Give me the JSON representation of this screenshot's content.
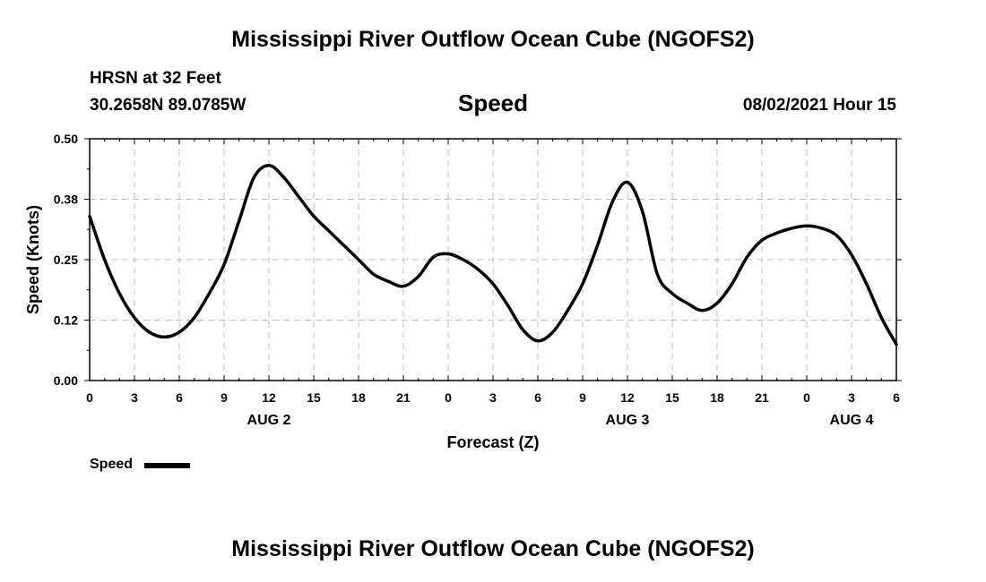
{
  "header": {
    "title": "Mississippi River Outflow Ocean Cube (NGOFS2)",
    "station": "HRSN at 32 Feet",
    "coords": "30.2658N  89.0785W",
    "timestamp": "08/02/2021 Hour 15"
  },
  "footer": {
    "title": "Mississippi River Outflow Ocean Cube (NGOFS2)"
  },
  "legend": {
    "label": "Speed",
    "color": "#000000"
  },
  "chart_data": {
    "type": "line",
    "title": "Speed",
    "xlabel": "Forecast (Z)",
    "ylabel": "Speed (Knots)",
    "xlim": [
      0,
      54
    ],
    "ylim": [
      0,
      0.5
    ],
    "x_ticks": [
      0,
      3,
      6,
      9,
      12,
      15,
      18,
      21,
      24,
      27,
      30,
      33,
      36,
      39,
      42,
      45,
      48,
      51,
      54
    ],
    "x_tick_labels": [
      "0",
      "3",
      "6",
      "9",
      "12",
      "15",
      "18",
      "21",
      "0",
      "3",
      "6",
      "9",
      "12",
      "15",
      "18",
      "21",
      "0",
      "3",
      "6"
    ],
    "y_ticks": [
      0,
      0.125,
      0.25,
      0.375,
      0.5
    ],
    "y_tick_labels": [
      "0.00",
      "0.12",
      "0.25",
      "0.38",
      "0.50"
    ],
    "date_labels": [
      {
        "x": 12,
        "label": "AUG 2"
      },
      {
        "x": 36,
        "label": "AUG 3"
      },
      {
        "x": 51,
        "label": "AUG 4"
      }
    ],
    "grid": true,
    "legend_position": "bottom-left",
    "series": [
      {
        "name": "Speed",
        "color": "#000000",
        "x": [
          0,
          1,
          2,
          3,
          4,
          5,
          6,
          7,
          8,
          9,
          10,
          11,
          12,
          13,
          14,
          15,
          16,
          17,
          18,
          19,
          20,
          21,
          22,
          23,
          24,
          25,
          26,
          27,
          28,
          29,
          30,
          31,
          32,
          33,
          34,
          35,
          36,
          37,
          38,
          39,
          40,
          41,
          42,
          43,
          44,
          45,
          46,
          47,
          48,
          49,
          50,
          51,
          52,
          53,
          54
        ],
        "values": [
          0.34,
          0.25,
          0.18,
          0.13,
          0.1,
          0.09,
          0.1,
          0.13,
          0.18,
          0.24,
          0.33,
          0.42,
          0.445,
          0.42,
          0.38,
          0.34,
          0.31,
          0.28,
          0.25,
          0.22,
          0.205,
          0.195,
          0.215,
          0.255,
          0.262,
          0.25,
          0.23,
          0.2,
          0.155,
          0.105,
          0.082,
          0.1,
          0.145,
          0.2,
          0.28,
          0.37,
          0.41,
          0.35,
          0.22,
          0.18,
          0.16,
          0.145,
          0.16,
          0.2,
          0.255,
          0.29,
          0.305,
          0.315,
          0.32,
          0.315,
          0.3,
          0.26,
          0.2,
          0.13,
          0.075
        ]
      }
    ]
  }
}
